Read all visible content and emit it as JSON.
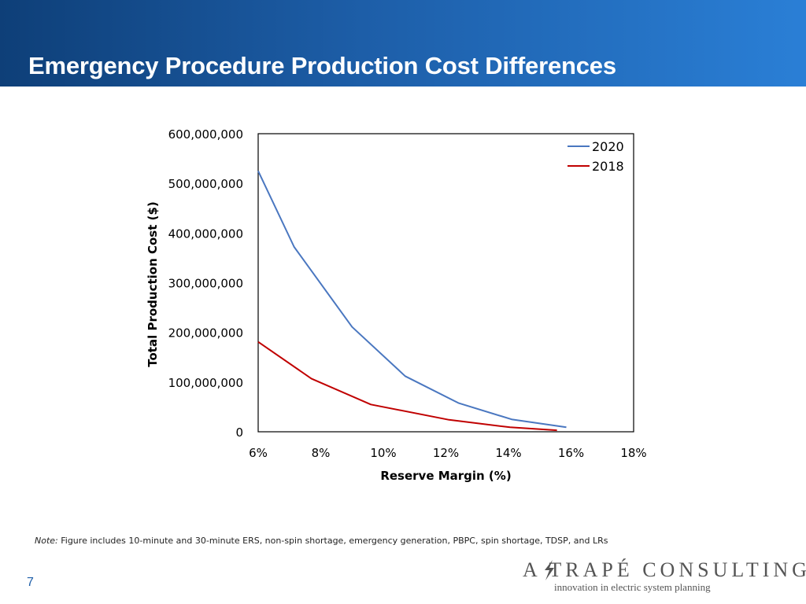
{
  "slide": {
    "title": "Emergency Procedure Production Cost Differences",
    "note_label": "Note:",
    "note_text": " Figure includes 10-minute and 30-minute ERS, non-spin shortage, emergency generation, PBPC, spin shortage, TDSP, and LRs",
    "slide_number": "7",
    "logo_text": "A TRAPÉ CONSULTING",
    "logo_tagline": "innovation in electric system planning"
  },
  "colors": {
    "header_start": "#0e3f78",
    "header_end": "#2a7fd6",
    "series_2020": "#4a77c0",
    "series_2018": "#c00000"
  },
  "chart_data": {
    "type": "line",
    "xlabel": "Reserve Margin (%)",
    "ylabel": "Total Production Cost ($)",
    "xlim": [
      6,
      18
    ],
    "ylim": [
      0,
      600000000
    ],
    "xticks": [
      6,
      8,
      10,
      12,
      14,
      16,
      18
    ],
    "xtick_labels": [
      "6%",
      "8%",
      "10%",
      "12%",
      "14%",
      "16%",
      "18%"
    ],
    "yticks": [
      0,
      100000000,
      200000000,
      300000000,
      400000000,
      500000000,
      600000000
    ],
    "ytick_labels": [
      "0",
      "100,000,000",
      "200,000,000",
      "300,000,000",
      "400,000,000",
      "500,000,000",
      "600,000,000"
    ],
    "legend_position": "top-right",
    "grid": false,
    "series": [
      {
        "name": "2020",
        "color": "#4a77c0",
        "x": [
          6.0,
          7.15,
          9.0,
          10.7,
          12.4,
          14.1,
          15.85
        ],
        "y": [
          525000000,
          372000000,
          211000000,
          112000000,
          58000000,
          25000000,
          9000000
        ]
      },
      {
        "name": "2018",
        "color": "#c00000",
        "x": [
          6.0,
          7.7,
          9.6,
          12.1,
          14.05,
          15.55
        ],
        "y": [
          181000000,
          107000000,
          55000000,
          24000000,
          9000000,
          3000000
        ]
      }
    ]
  }
}
